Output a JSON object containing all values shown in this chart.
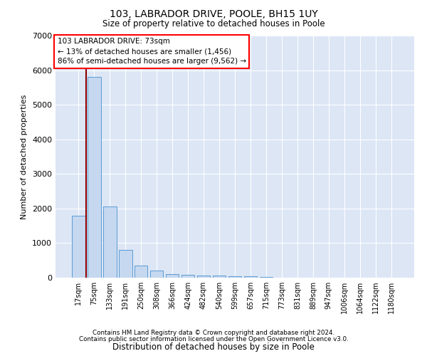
{
  "title1": "103, LABRADOR DRIVE, POOLE, BH15 1UY",
  "title2": "Size of property relative to detached houses in Poole",
  "xlabel": "Distribution of detached houses by size in Poole",
  "ylabel": "Number of detached properties",
  "footnote1": "Contains HM Land Registry data © Crown copyright and database right 2024.",
  "footnote2": "Contains public sector information licensed under the Open Government Licence v3.0.",
  "annotation_line1": "103 LABRADOR DRIVE: 73sqm",
  "annotation_line2": "← 13% of detached houses are smaller (1,456)",
  "annotation_line3": "86% of semi-detached houses are larger (9,562) →",
  "bar_color": "#c5d8f0",
  "bar_edge_color": "#5b9bd5",
  "background_color": "#dce6f5",
  "marker_color": "#8b0000",
  "categories": [
    "17sqm",
    "75sqm",
    "133sqm",
    "191sqm",
    "250sqm",
    "308sqm",
    "366sqm",
    "424sqm",
    "482sqm",
    "540sqm",
    "599sqm",
    "657sqm",
    "715sqm",
    "773sqm",
    "831sqm",
    "889sqm",
    "947sqm",
    "1006sqm",
    "1064sqm",
    "1122sqm",
    "1180sqm"
  ],
  "values": [
    1800,
    5800,
    2050,
    800,
    350,
    200,
    110,
    80,
    70,
    60,
    50,
    40,
    30,
    0,
    0,
    0,
    0,
    0,
    0,
    0,
    0
  ],
  "ylim": [
    0,
    7000
  ],
  "yticks": [
    0,
    1000,
    2000,
    3000,
    4000,
    5000,
    6000,
    7000
  ]
}
